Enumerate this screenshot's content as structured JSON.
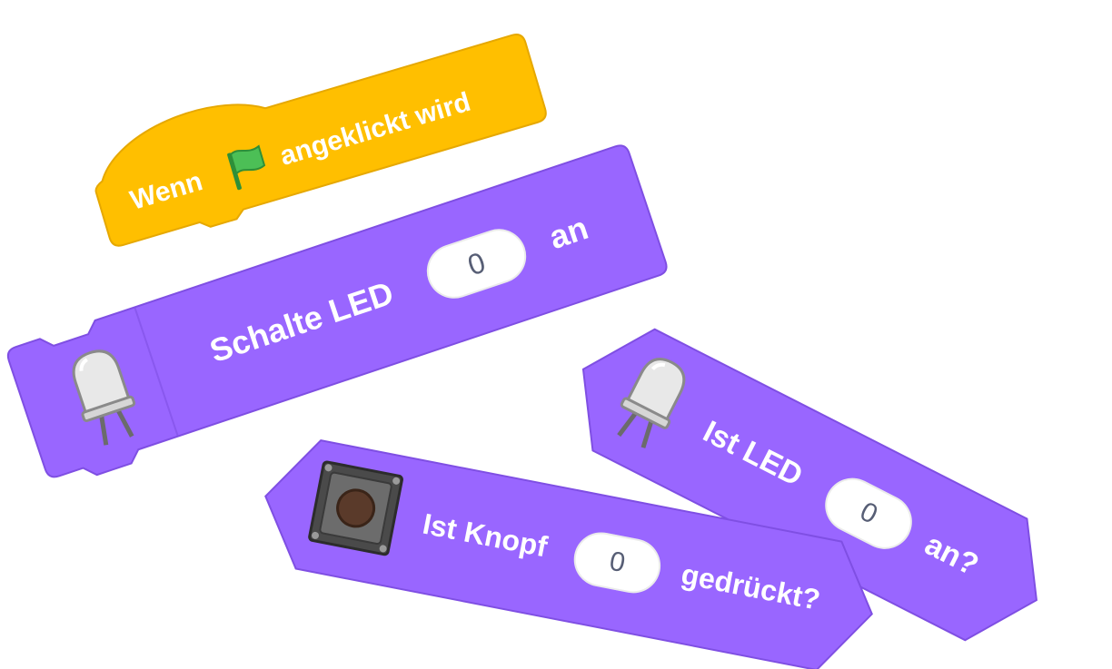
{
  "colors": {
    "event": "#FFBF00",
    "event_edge": "#E6A800",
    "extension": "#9966FF",
    "extension_edge": "#7F4FE3",
    "flag": "#4CBF56",
    "flag_edge": "#2E8F38",
    "input_text": "#575E75",
    "button_cap": "#5A3A2A"
  },
  "hat_block": {
    "word1": "Wenn",
    "word2": "angeklickt wird",
    "icon": "green-flag-icon"
  },
  "command_block": {
    "label": "Schalte LED",
    "input_value": "0",
    "suffix": "an",
    "icon": "led-icon"
  },
  "reporter_led": {
    "label": "Ist LED",
    "input_value": "0",
    "suffix": "an?",
    "icon": "led-icon"
  },
  "reporter_button": {
    "label": "Ist Knopf",
    "input_value": "0",
    "suffix": "gedrückt?",
    "icon": "push-button-icon"
  }
}
